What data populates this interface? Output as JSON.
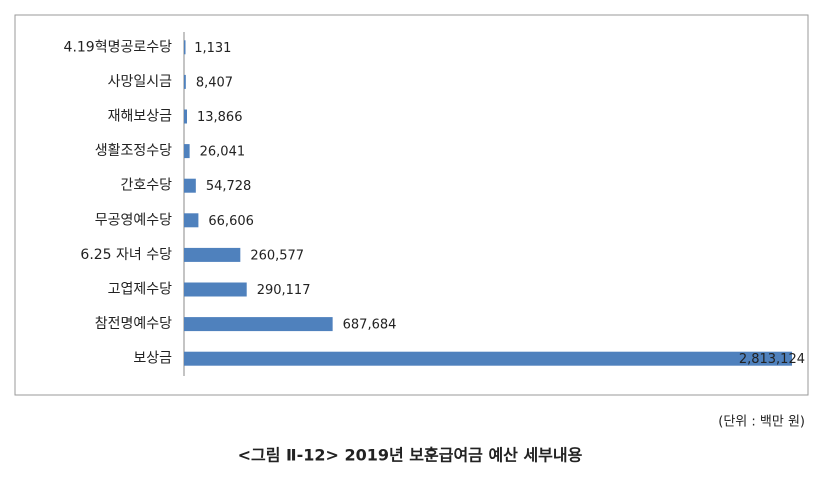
{
  "chart_data": {
    "type": "barh",
    "categories": [
      "4.19혁명공로수당",
      "사망일시금",
      "재해보상금",
      "생활조정수당",
      "간호수당",
      "무공영예수당",
      "6.25 자녀 수당",
      "고엽제수당",
      "참전명예수당",
      "보상금"
    ],
    "values": [
      1131,
      8407,
      13866,
      26041,
      54728,
      66606,
      260577,
      290117,
      687684,
      2813124
    ],
    "value_labels": [
      "1,131",
      "8,407",
      "13,866",
      "26,041",
      "54,728",
      "66,606",
      "260,577",
      "290,117",
      "687,684",
      "2,813,124"
    ],
    "color": "#4f81bd",
    "xlim": [
      0,
      2850000
    ],
    "unit_note": "(단위 : 백만 원)",
    "caption": "<그림 Ⅱ-12> 2019년 보훈급여금 예산 세부내용"
  }
}
